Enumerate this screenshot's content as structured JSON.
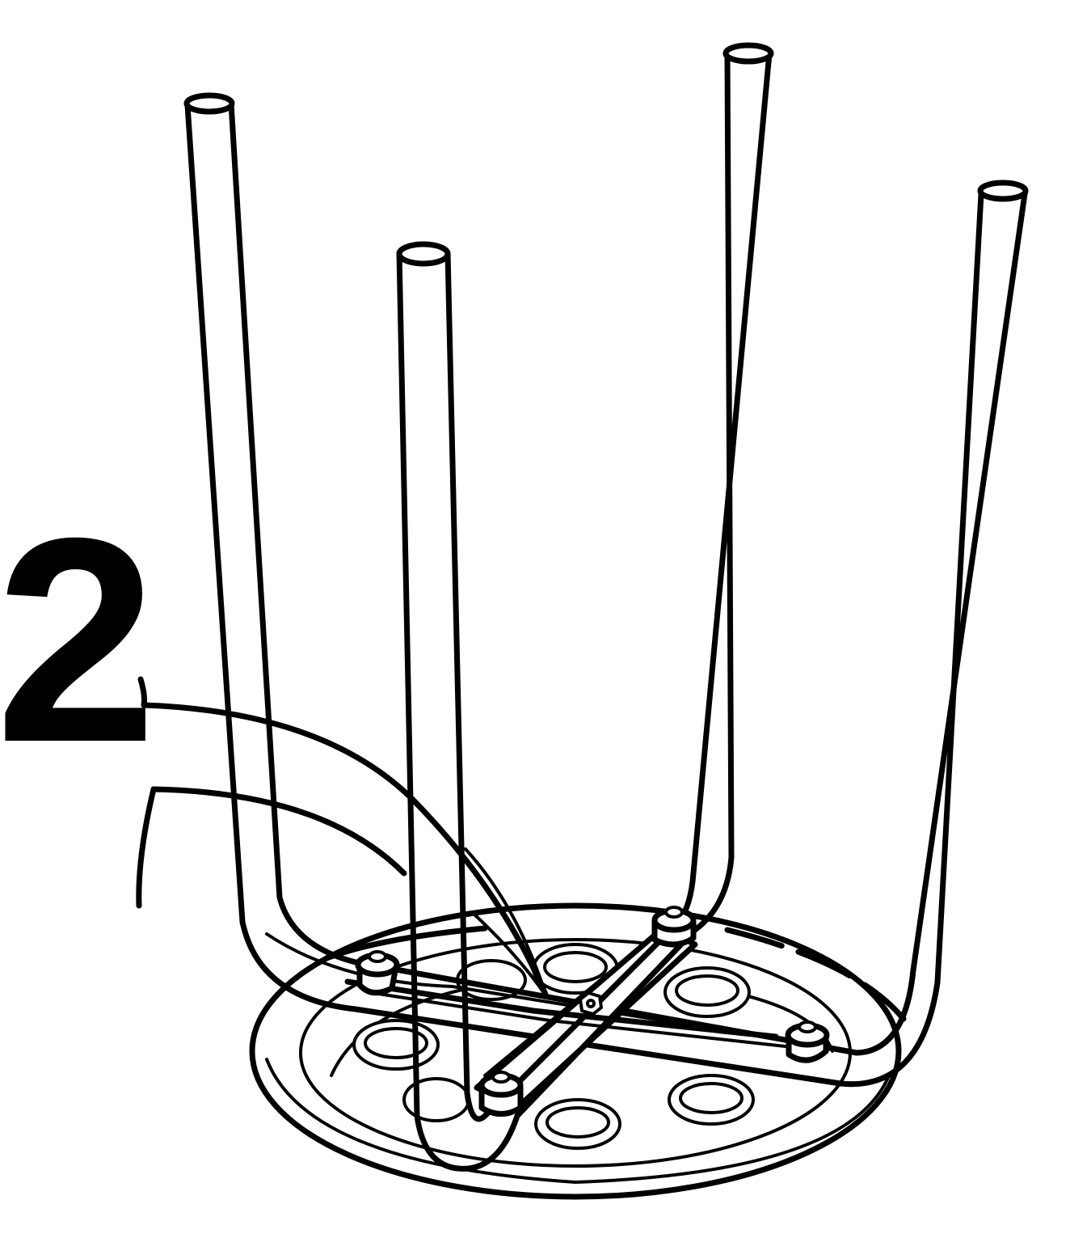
{
  "step": {
    "number": "2"
  },
  "colors": {
    "ink": "#000000",
    "paper": "#ffffff"
  },
  "figure": {
    "subject": "stool-upside-down-assembly",
    "parts": [
      "round-seat",
      "u-leg-frame-front",
      "u-leg-frame-back",
      "cross-bracket",
      "mounting-screws",
      "center-nut",
      "seat-rings"
    ]
  }
}
